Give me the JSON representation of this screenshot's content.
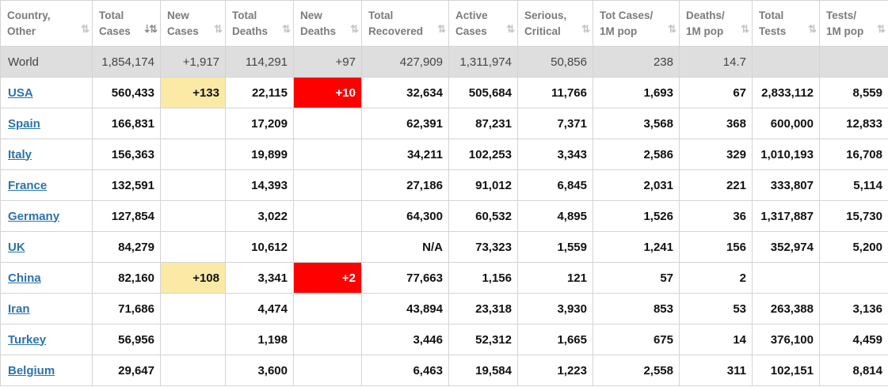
{
  "headers": [
    {
      "line1": "Country,",
      "line2": "Other",
      "sort": "⇅",
      "active": false
    },
    {
      "line1": "Total",
      "line2": "Cases",
      "sort": "⇣⇅",
      "active": true
    },
    {
      "line1": "New",
      "line2": "Cases",
      "sort": "⇅",
      "active": false
    },
    {
      "line1": "Total",
      "line2": "Deaths",
      "sort": "⇅",
      "active": false
    },
    {
      "line1": "New",
      "line2": "Deaths",
      "sort": "⇅",
      "active": false
    },
    {
      "line1": "Total",
      "line2": "Recovered",
      "sort": "⇅",
      "active": false
    },
    {
      "line1": "Active",
      "line2": "Cases",
      "sort": "⇅",
      "active": false
    },
    {
      "line1": "Serious,",
      "line2": "Critical",
      "sort": "⇅",
      "active": false
    },
    {
      "line1": "Tot Cases/",
      "line2": "1M pop",
      "sort": "⇅",
      "active": false
    },
    {
      "line1": "Deaths/",
      "line2": "1M pop",
      "sort": "⇅",
      "active": false
    },
    {
      "line1": "Total",
      "line2": "Tests",
      "sort": "⇅",
      "active": false
    },
    {
      "line1": "Tests/",
      "line2": "1M pop",
      "sort": "⇅",
      "active": false
    }
  ],
  "world": [
    "World",
    "1,854,174",
    "+1,917",
    "114,291",
    "+97",
    "427,909",
    "1,311,974",
    "50,856",
    "238",
    "14.7",
    "",
    ""
  ],
  "rows": [
    [
      "USA",
      "560,433",
      "+133",
      "22,115",
      "+10",
      "32,634",
      "505,684",
      "11,766",
      "1,693",
      "67",
      "2,833,112",
      "8,559"
    ],
    [
      "Spain",
      "166,831",
      "",
      "17,209",
      "",
      "62,391",
      "87,231",
      "7,371",
      "3,568",
      "368",
      "600,000",
      "12,833"
    ],
    [
      "Italy",
      "156,363",
      "",
      "19,899",
      "",
      "34,211",
      "102,253",
      "3,343",
      "2,586",
      "329",
      "1,010,193",
      "16,708"
    ],
    [
      "France",
      "132,591",
      "",
      "14,393",
      "",
      "27,186",
      "91,012",
      "6,845",
      "2,031",
      "221",
      "333,807",
      "5,114"
    ],
    [
      "Germany",
      "127,854",
      "",
      "3,022",
      "",
      "64,300",
      "60,532",
      "4,895",
      "1,526",
      "36",
      "1,317,887",
      "15,730"
    ],
    [
      "UK",
      "84,279",
      "",
      "10,612",
      "",
      "N/A",
      "73,323",
      "1,559",
      "1,241",
      "156",
      "352,974",
      "5,200"
    ],
    [
      "China",
      "82,160",
      "+108",
      "3,341",
      "+2",
      "77,663",
      "1,156",
      "121",
      "57",
      "2",
      "",
      ""
    ],
    [
      "Iran",
      "71,686",
      "",
      "4,474",
      "",
      "43,894",
      "23,318",
      "3,930",
      "853",
      "53",
      "263,388",
      "3,136"
    ],
    [
      "Turkey",
      "56,956",
      "",
      "1,198",
      "",
      "3,446",
      "52,312",
      "1,665",
      "675",
      "14",
      "376,100",
      "4,459"
    ],
    [
      "Belgium",
      "29,647",
      "",
      "3,600",
      "",
      "6,463",
      "19,584",
      "1,223",
      "2,558",
      "311",
      "102,151",
      "8,814"
    ]
  ],
  "colors": {
    "new_cases_highlight": "#fbeaa6",
    "new_deaths_highlight": "#ff0000",
    "link": "#2a73ad",
    "world_row": "#dedede"
  }
}
